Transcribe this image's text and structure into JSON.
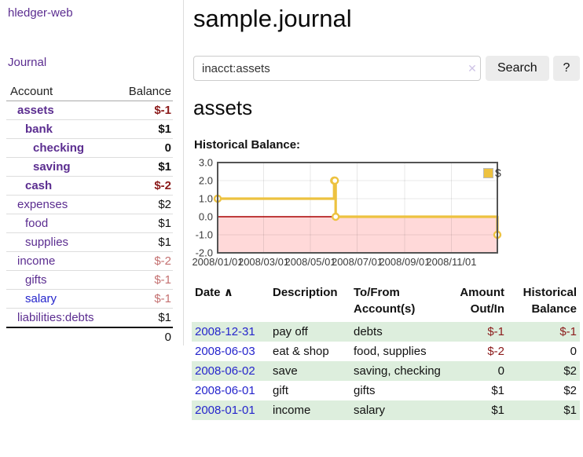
{
  "app": {
    "title": "hledger-web",
    "nav_journal": "Journal"
  },
  "sidebar": {
    "header": {
      "account": "Account",
      "balance": "Balance"
    },
    "accounts": [
      {
        "name": "assets",
        "level": 1,
        "bold": true,
        "color": "purple",
        "balance": "$-1",
        "balance_style": "neg-strong"
      },
      {
        "name": "bank",
        "level": 2,
        "bold": true,
        "color": "purple",
        "balance": "$1",
        "balance_style": "strong"
      },
      {
        "name": "checking",
        "level": 3,
        "bold": true,
        "color": "purple",
        "balance": "0",
        "balance_style": "strong"
      },
      {
        "name": "saving",
        "level": 3,
        "bold": true,
        "color": "purple",
        "balance": "$1",
        "balance_style": "strong"
      },
      {
        "name": "cash",
        "level": 2,
        "bold": true,
        "color": "purple",
        "balance": "$-2",
        "balance_style": "neg-strong"
      },
      {
        "name": "expenses",
        "level": 1,
        "bold": false,
        "color": "purple",
        "balance": "$2",
        "balance_style": "normal"
      },
      {
        "name": "food",
        "level": 2,
        "bold": false,
        "color": "purple",
        "balance": "$1",
        "balance_style": "normal"
      },
      {
        "name": "supplies",
        "level": 2,
        "bold": false,
        "color": "purple",
        "balance": "$1",
        "balance_style": "normal"
      },
      {
        "name": "income",
        "level": 1,
        "bold": false,
        "color": "purple",
        "balance": "$-2",
        "balance_style": "neg-soft"
      },
      {
        "name": "gifts",
        "level": 2,
        "bold": false,
        "color": "purple",
        "balance": "$-1",
        "balance_style": "neg-soft"
      },
      {
        "name": "salary",
        "level": 2,
        "bold": false,
        "color": "blue",
        "balance": "$-1",
        "balance_style": "neg-soft"
      },
      {
        "name": "liabilities:debts",
        "level": 1,
        "bold": false,
        "color": "purple",
        "balance": "$1",
        "balance_style": "normal"
      }
    ],
    "total": "0"
  },
  "main": {
    "title": "sample.journal",
    "search": {
      "value": "inacct:assets",
      "clear_icon": "✕",
      "button": "Search",
      "help": "?"
    },
    "account_heading": "assets",
    "chart_label": "Historical Balance:"
  },
  "chart_data": {
    "type": "line",
    "title": "Historical Balance:",
    "series": [
      {
        "name": "$",
        "color": "#EDC240",
        "steps": true,
        "points": [
          [
            "2008-01-01",
            1
          ],
          [
            "2008-06-01",
            2
          ],
          [
            "2008-06-02",
            2
          ],
          [
            "2008-06-03",
            0
          ],
          [
            "2008-12-31",
            -1
          ]
        ]
      }
    ],
    "xrange": [
      "2008-01-01",
      "2008-12-31"
    ],
    "ylim": [
      -2,
      3
    ],
    "yticks": [
      3,
      2,
      1,
      0,
      -1,
      -2
    ],
    "ytick_labels": [
      "3.0",
      "2.0",
      "1.0",
      "0.0",
      "-1.0",
      "-2.0"
    ],
    "xtick_labels": [
      "2008/01/01",
      "2008/03/01",
      "2008/05/01",
      "2008/07/01",
      "2008/09/01",
      "2008/11/01"
    ],
    "grid": true,
    "legend_position": "top-right",
    "negative_region_fill": "#FFD9D9",
    "zero_line_color": "#AA0000"
  },
  "register": {
    "columns": [
      "Date",
      "Description",
      "To/From Account(s)",
      "Amount Out/In",
      "Historical Balance"
    ],
    "sort_indicator": "∧",
    "rows": [
      {
        "date": "2008-12-31",
        "description": "pay off",
        "accounts": "debts",
        "amount": "$-1",
        "balance": "$-1"
      },
      {
        "date": "2008-06-03",
        "description": "eat & shop",
        "accounts": "food, supplies",
        "amount": "$-2",
        "balance": "0"
      },
      {
        "date": "2008-06-02",
        "description": "save",
        "accounts": "saving, checking",
        "amount": "0",
        "balance": "$2"
      },
      {
        "date": "2008-06-01",
        "description": "gift",
        "accounts": "gifts",
        "amount": "$1",
        "balance": "$2"
      },
      {
        "date": "2008-01-01",
        "description": "income",
        "accounts": "salary",
        "amount": "$1",
        "balance": "$1"
      }
    ]
  },
  "colors": {
    "link_purple": "#5b2d90",
    "link_blue": "#2525cc",
    "negative_strong": "#8b1a1a",
    "negative_soft": "#c47070",
    "row_green": "#ddeedd",
    "series_yellow": "#EDC240",
    "negative_region_pink": "#FFD9D9",
    "zero_line_red": "#AA0000",
    "button_gray": "#ececec"
  }
}
